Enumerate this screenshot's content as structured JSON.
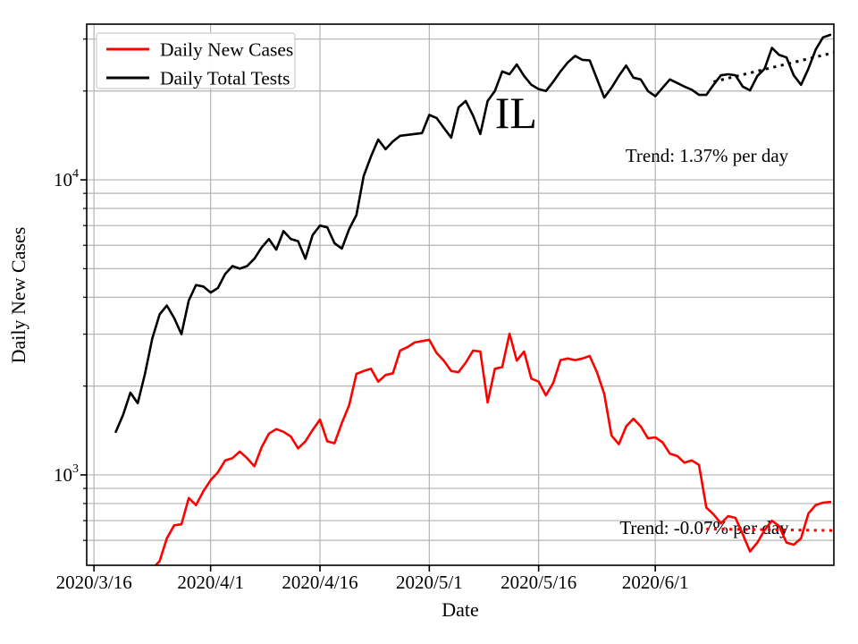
{
  "figure": {
    "background": "#ffffff",
    "grid_color": "#b3b3b3",
    "spine_color": "#000000",
    "tick_color": "#000000"
  },
  "chart_data": {
    "type": "line",
    "title": "",
    "xlabel": "Date",
    "ylabel": "Daily New Cases",
    "yscale": "log",
    "grid": true,
    "legend_position": "upper left",
    "ylim": [
      494,
      33700
    ],
    "x_origin_date": "2020/3/16",
    "x_domain_days": [
      -1,
      101.5
    ],
    "x_ticks": [
      {
        "label": "2020/3/16",
        "day": 0
      },
      {
        "label": "2020/4/1",
        "day": 16
      },
      {
        "label": "2020/4/16",
        "day": 31
      },
      {
        "label": "2020/5/1",
        "day": 46
      },
      {
        "label": "2020/5/16",
        "day": 61
      },
      {
        "label": "2020/6/1",
        "day": 77
      }
    ],
    "y_ticks": [
      {
        "base": "10",
        "exp": "3",
        "value": 1000
      },
      {
        "base": "10",
        "exp": "4",
        "value": 10000
      }
    ],
    "y_gridlines_minor": [
      600,
      700,
      800,
      900,
      2000,
      3000,
      4000,
      5000,
      6000,
      7000,
      8000,
      9000,
      20000,
      30000
    ],
    "series": [
      {
        "name": "Daily New Cases",
        "color": "#ff0000",
        "start_date": "2020/3/24",
        "start_day": 8,
        "interval_days": 1,
        "values": [
          480,
          510,
          610,
          675,
          680,
          835,
          790,
          880,
          960,
          1020,
          1120,
          1140,
          1200,
          1140,
          1070,
          1240,
          1380,
          1430,
          1400,
          1350,
          1230,
          1300,
          1420,
          1540,
          1300,
          1280,
          1500,
          1720,
          2200,
          2250,
          2290,
          2070,
          2180,
          2210,
          2640,
          2710,
          2810,
          2840,
          2870,
          2590,
          2440,
          2250,
          2230,
          2400,
          2640,
          2620,
          1760,
          2290,
          2320,
          3010,
          2440,
          2620,
          2120,
          2070,
          1860,
          2050,
          2450,
          2480,
          2450,
          2480,
          2530,
          2230,
          1880,
          1360,
          1270,
          1460,
          1550,
          1460,
          1330,
          1340,
          1290,
          1180,
          1160,
          1100,
          1120,
          1080,
          775,
          735,
          685,
          725,
          715,
          630,
          550,
          590,
          650,
          700,
          670,
          590,
          580,
          610,
          740,
          790,
          805,
          810
        ]
      },
      {
        "name": "Daily Total Tests",
        "color": "#000000",
        "start_date": "2020/3/19",
        "start_day": 3,
        "interval_days": 1,
        "values": [
          1400,
          1600,
          1900,
          1750,
          2200,
          2900,
          3500,
          3750,
          3400,
          3000,
          3900,
          4400,
          4350,
          4150,
          4300,
          4800,
          5100,
          5000,
          5100,
          5400,
          5900,
          6300,
          5800,
          6700,
          6300,
          6200,
          5400,
          6500,
          7000,
          6900,
          6100,
          5850,
          6800,
          7600,
          10300,
          12000,
          13700,
          12700,
          13500,
          14100,
          14200,
          14300,
          14400,
          16600,
          16200,
          15000,
          13900,
          17600,
          18500,
          16500,
          14300,
          18500,
          20000,
          23300,
          22800,
          24600,
          22500,
          21000,
          20300,
          20000,
          21500,
          23300,
          25000,
          26300,
          25500,
          25400,
          22000,
          19000,
          20500,
          22500,
          24400,
          22200,
          21900,
          20000,
          19200,
          20500,
          21900,
          21300,
          20700,
          20200,
          19400,
          19400,
          21000,
          22600,
          22800,
          22600,
          20700,
          20100,
          22500,
          23800,
          28000,
          26500,
          26000,
          22600,
          21000,
          23800,
          27600,
          30400,
          31000
        ]
      }
    ],
    "trend_lines": [
      {
        "label": "Trend: 1.37% per day",
        "rate_percent_per_day": 1.37,
        "color": "#000000",
        "start_day": 85,
        "start_value": 21500,
        "end_day": 101.5,
        "end_value": 27000
      },
      {
        "label": "Trend: -0.07% per day",
        "rate_percent_per_day": -0.07,
        "color": "#ff0000",
        "start_day": 84,
        "start_value": 656,
        "end_day": 101.5,
        "end_value": 648
      }
    ],
    "annotations": [
      {
        "text": "IL",
        "day": 55,
        "value": 15000
      }
    ]
  },
  "legend": {
    "items": [
      {
        "label": "Daily New Cases",
        "color": "#ff0000"
      },
      {
        "label": "Daily Total Tests",
        "color": "#000000"
      }
    ]
  }
}
